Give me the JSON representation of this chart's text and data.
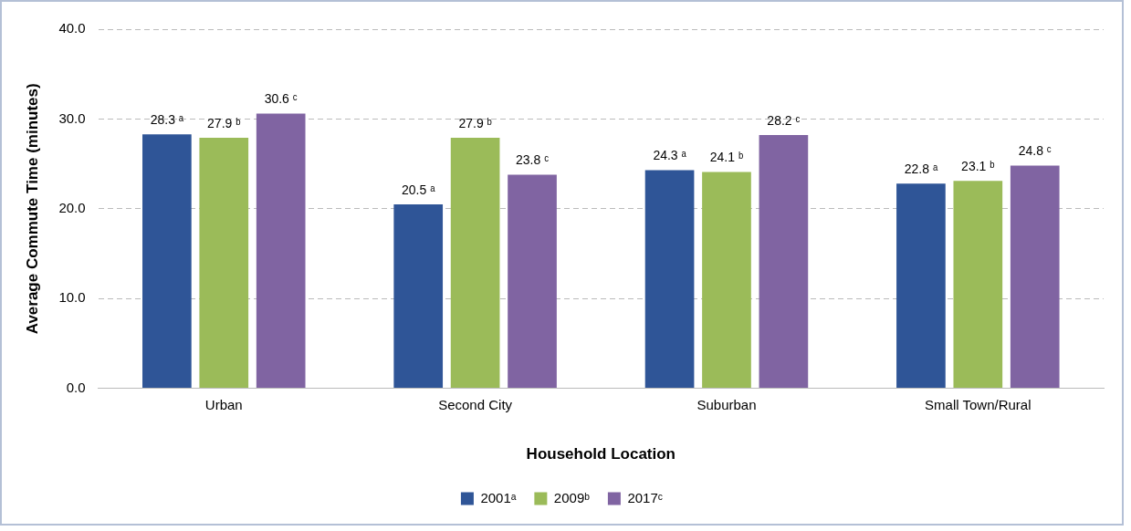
{
  "chart_data": {
    "type": "bar",
    "xlabel": "Household Location",
    "ylabel": "Average Commute Time (minutes)",
    "categories": [
      "Urban",
      "Second City",
      "Suburban",
      "Small Town/Rural"
    ],
    "series": [
      {
        "name": "2001ᵃ",
        "color": "#2f5597",
        "values": [
          28.3,
          20.5,
          24.3,
          22.8
        ],
        "value_labels": [
          "28.3 ᵃ",
          "20.5 ᵃ",
          "24.3 ᵃ",
          "22.8 ᵃ"
        ]
      },
      {
        "name": "2009ᵇ",
        "color": "#9bbb59",
        "values": [
          27.9,
          27.9,
          24.1,
          23.1
        ],
        "value_labels": [
          "27.9 ᵇ",
          "27.9 ᵇ",
          "24.1 ᵇ",
          "23.1 ᵇ"
        ]
      },
      {
        "name": "2017ᶜ",
        "color": "#8064a2",
        "values": [
          30.6,
          23.8,
          28.2,
          24.8
        ],
        "value_labels": [
          "30.6 ᶜ",
          "23.8 ᶜ",
          "28.2 ᶜ",
          "24.8 ᶜ"
        ]
      }
    ],
    "ylim": [
      0,
      40
    ],
    "yticks": [
      {
        "value": 0,
        "label": "0.0"
      },
      {
        "value": 10,
        "label": "10.0"
      },
      {
        "value": 20,
        "label": "20.0"
      },
      {
        "value": 30,
        "label": "30.0"
      },
      {
        "value": 40,
        "label": "40.0"
      }
    ],
    "grid": "y",
    "legend": "bottom"
  }
}
